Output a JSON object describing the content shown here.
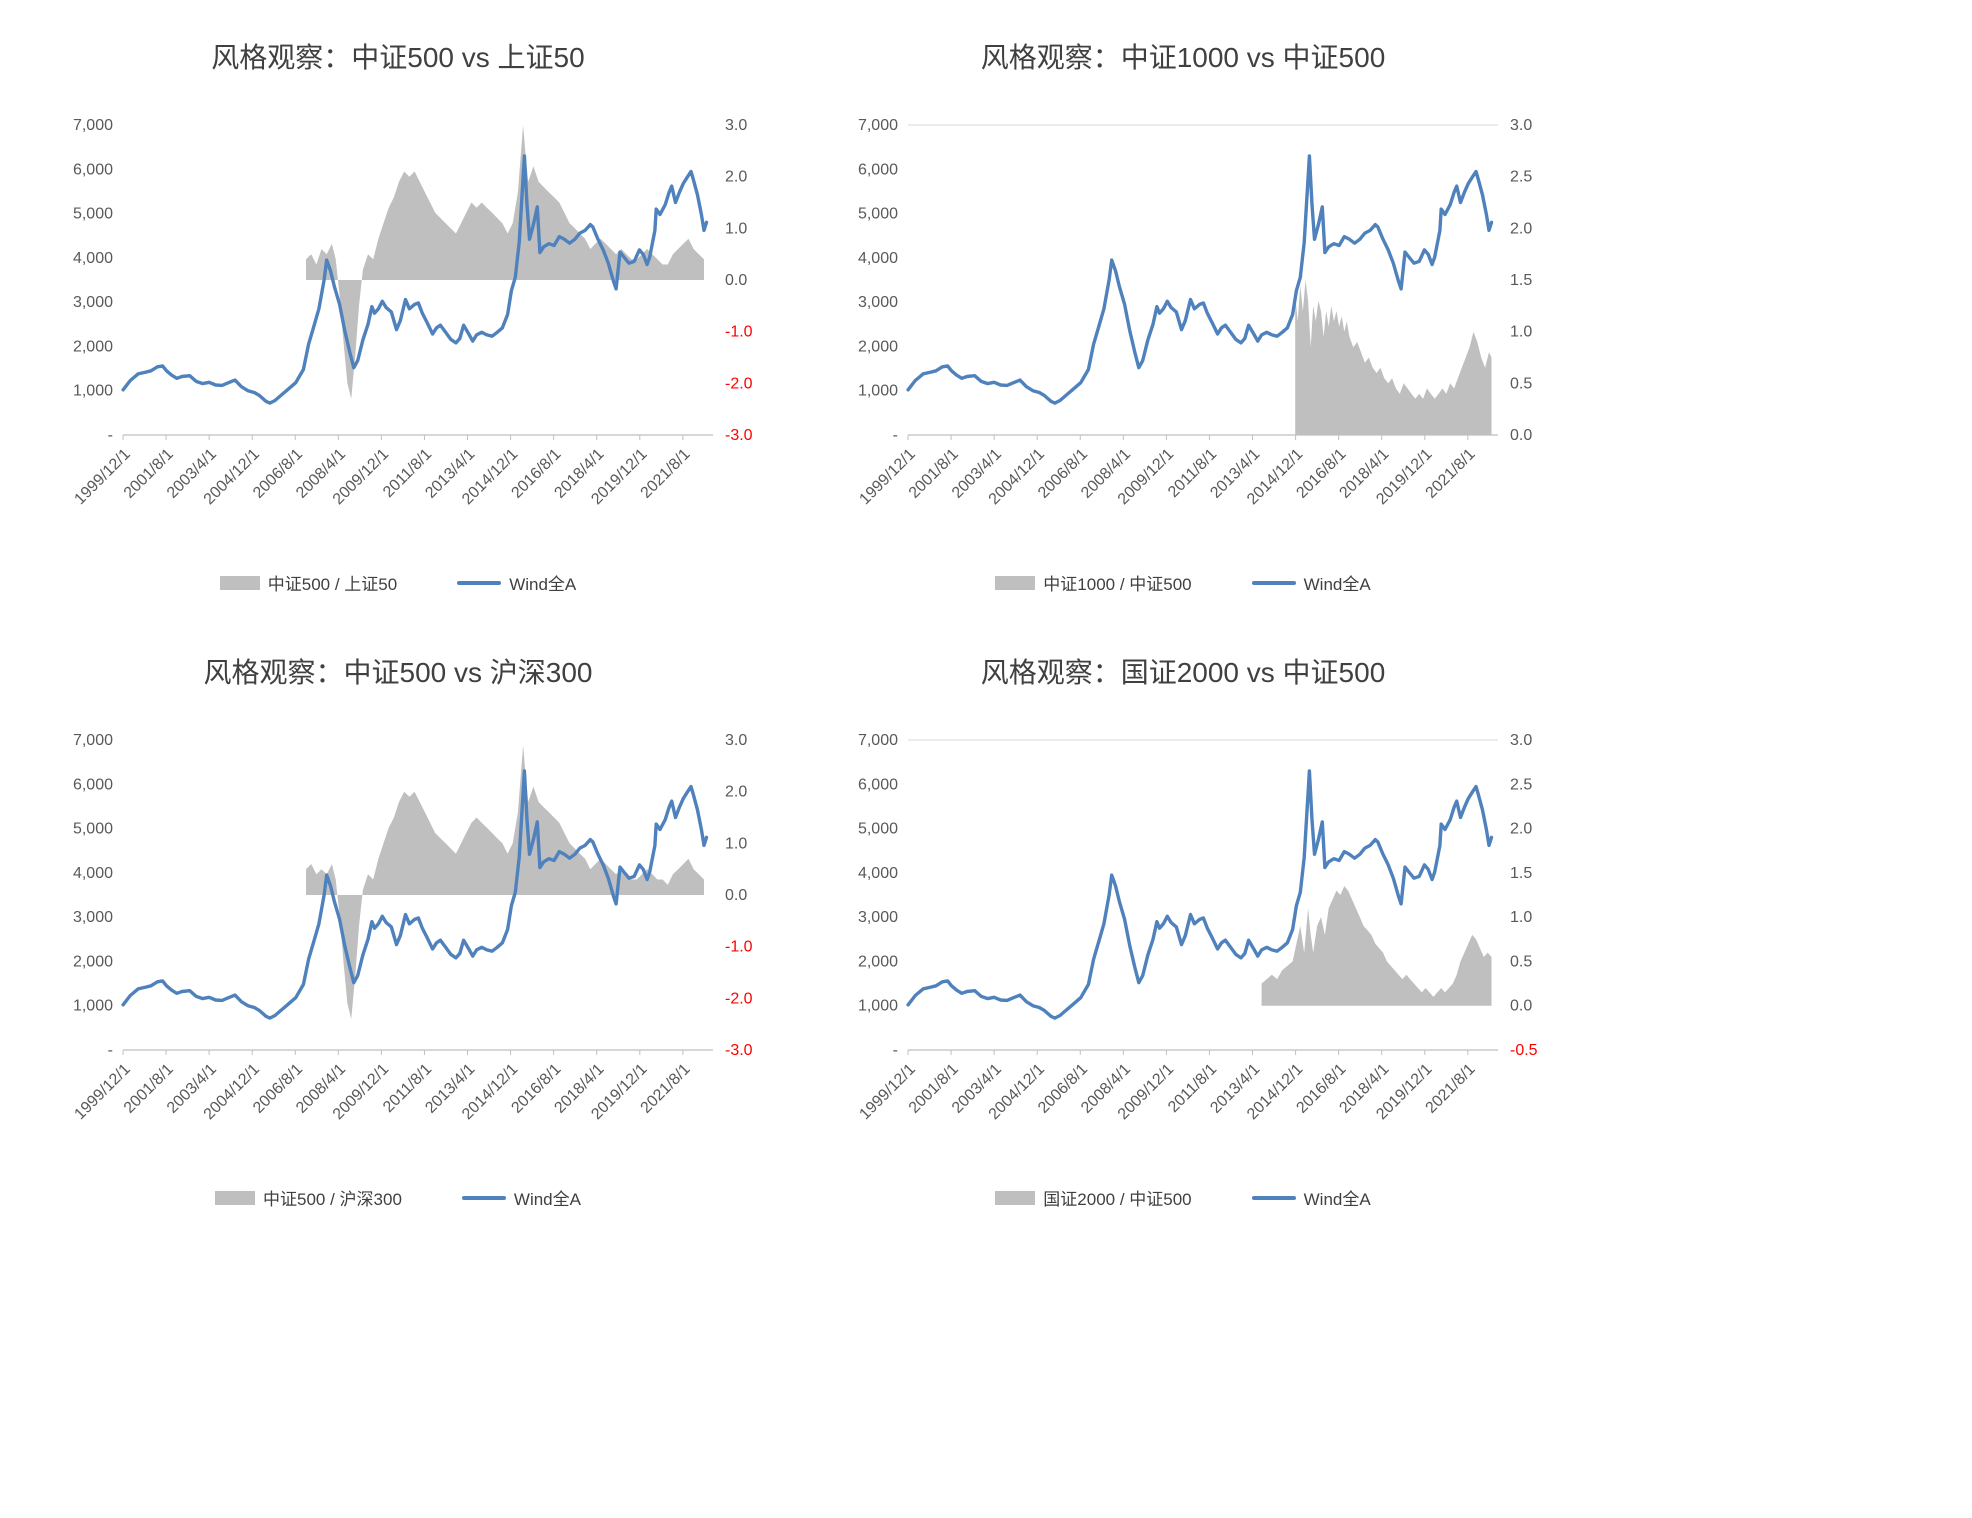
{
  "colors": {
    "line": "#4f81bd",
    "area": "#bfbfbf",
    "axis_text": "#595959",
    "negative_text": "#ff0000",
    "axis_line": "#bfbfbf",
    "gridline": "#d9d9d9"
  },
  "axes": {
    "left_labels": [
      "-",
      "1,000",
      "2,000",
      "3,000",
      "4,000",
      "5,000",
      "6,000",
      "7,000"
    ],
    "left_min": 0,
    "left_max": 7000,
    "x_tick_labels": [
      "1999/12/1",
      "2001/8/1",
      "2003/4/1",
      "2004/12/1",
      "2006/8/1",
      "2008/4/1",
      "2009/12/1",
      "2011/8/1",
      "2013/4/1",
      "2014/12/1",
      "2016/8/1",
      "2018/4/1",
      "2019/12/1",
      "2021/8/1"
    ],
    "x_tick_values": [
      1999.917,
      2001.583,
      2003.25,
      2004.917,
      2006.583,
      2008.25,
      2009.917,
      2011.583,
      2013.25,
      2014.917,
      2016.583,
      2018.25,
      2019.917,
      2021.583
    ],
    "x_min": 1999.917,
    "x_max": 2022.75
  },
  "chart_data": {
    "type": "line+area dual-axis, 2x2 grid of style-rotation charts",
    "wind_line": {
      "name": "Wind全A",
      "x": [
        1999.92,
        2000.2,
        2000.5,
        2000.8,
        2001.0,
        2001.25,
        2001.45,
        2001.6,
        2001.8,
        2002.0,
        2002.2,
        2002.5,
        2002.75,
        2003.0,
        2003.25,
        2003.5,
        2003.75,
        2004.0,
        2004.25,
        2004.5,
        2004.75,
        2005.0,
        2005.2,
        2005.45,
        2005.6,
        2005.8,
        2006.0,
        2006.3,
        2006.6,
        2006.9,
        2007.1,
        2007.3,
        2007.5,
        2007.7,
        2007.8,
        2007.95,
        2008.1,
        2008.3,
        2008.5,
        2008.7,
        2008.85,
        2009.0,
        2009.2,
        2009.4,
        2009.55,
        2009.65,
        2009.8,
        2009.95,
        2010.1,
        2010.3,
        2010.5,
        2010.65,
        2010.85,
        2011.0,
        2011.2,
        2011.35,
        2011.5,
        2011.7,
        2011.9,
        2012.05,
        2012.2,
        2012.4,
        2012.6,
        2012.8,
        2012.95,
        2013.1,
        2013.3,
        2013.45,
        2013.6,
        2013.8,
        2014.0,
        2014.2,
        2014.4,
        2014.6,
        2014.8,
        2014.95,
        2015.1,
        2015.25,
        2015.45,
        2015.55,
        2015.65,
        2015.8,
        2015.95,
        2016.05,
        2016.2,
        2016.4,
        2016.6,
        2016.8,
        2017.0,
        2017.2,
        2017.4,
        2017.6,
        2017.8,
        2018.0,
        2018.1,
        2018.3,
        2018.5,
        2018.7,
        2018.9,
        2019.0,
        2019.15,
        2019.3,
        2019.5,
        2019.7,
        2019.9,
        2020.05,
        2020.2,
        2020.3,
        2020.5,
        2020.55,
        2020.7,
        2020.9,
        2021.05,
        2021.15,
        2021.3,
        2021.45,
        2021.6,
        2021.75,
        2021.9,
        2022.0,
        2022.15,
        2022.3,
        2022.4,
        2022.5
      ],
      "y": [
        1020,
        1230,
        1380,
        1420,
        1450,
        1540,
        1560,
        1450,
        1350,
        1280,
        1320,
        1340,
        1210,
        1160,
        1190,
        1130,
        1120,
        1180,
        1240,
        1090,
        1000,
        960,
        890,
        760,
        720,
        780,
        880,
        1030,
        1180,
        1480,
        2050,
        2450,
        2850,
        3500,
        3950,
        3700,
        3350,
        2950,
        2350,
        1850,
        1520,
        1680,
        2150,
        2500,
        2900,
        2750,
        2850,
        3020,
        2880,
        2780,
        2380,
        2580,
        3060,
        2850,
        2950,
        2980,
        2750,
        2520,
        2280,
        2420,
        2480,
        2320,
        2160,
        2080,
        2180,
        2480,
        2280,
        2120,
        2260,
        2320,
        2260,
        2230,
        2320,
        2420,
        2720,
        3260,
        3560,
        4350,
        6300,
        5200,
        4420,
        4750,
        5150,
        4120,
        4250,
        4320,
        4280,
        4480,
        4420,
        4330,
        4420,
        4560,
        4620,
        4750,
        4700,
        4420,
        4180,
        3880,
        3470,
        3300,
        4130,
        4020,
        3880,
        3920,
        4180,
        4080,
        3850,
        4020,
        4620,
        5100,
        4980,
        5200,
        5480,
        5620,
        5250,
        5480,
        5680,
        5820,
        5950,
        5750,
        5420,
        4980,
        4620,
        4800
      ]
    },
    "charts": [
      {
        "title": "风格观察：中证500 vs 上证50",
        "legend": {
          "area": "中证500 / 上证50",
          "line": "Wind全A"
        },
        "right_axis": {
          "min": -3,
          "max": 3,
          "ticks": [
            3,
            2,
            1,
            0,
            -1,
            -2,
            -3
          ]
        },
        "top_gridline": false,
        "area": {
          "name": "中证500 / 上证50",
          "x": [
            2007.0,
            2007.2,
            2007.4,
            2007.6,
            2007.8,
            2008.0,
            2008.15,
            2008.3,
            2008.45,
            2008.6,
            2008.75,
            2008.9,
            2009.05,
            2009.2,
            2009.4,
            2009.6,
            2009.8,
            2010.0,
            2010.2,
            2010.4,
            2010.6,
            2010.8,
            2011.0,
            2011.2,
            2011.4,
            2011.6,
            2011.8,
            2012.0,
            2012.2,
            2012.4,
            2012.6,
            2012.8,
            2013.0,
            2013.2,
            2013.4,
            2013.6,
            2013.8,
            2014.0,
            2014.2,
            2014.4,
            2014.6,
            2014.8,
            2015.0,
            2015.2,
            2015.4,
            2015.5,
            2015.6,
            2015.8,
            2016.0,
            2016.2,
            2016.4,
            2016.6,
            2016.8,
            2017.0,
            2017.2,
            2017.4,
            2017.6,
            2017.8,
            2018.0,
            2018.2,
            2018.4,
            2018.6,
            2018.8,
            2019.0,
            2019.2,
            2019.4,
            2019.6,
            2019.8,
            2020.0,
            2020.2,
            2020.4,
            2020.6,
            2020.8,
            2021.0,
            2021.2,
            2021.4,
            2021.6,
            2021.8,
            2022.0,
            2022.2,
            2022.4
          ],
          "y": [
            0.4,
            0.5,
            0.3,
            0.6,
            0.5,
            0.7,
            0.4,
            -0.3,
            -1.2,
            -2.0,
            -2.3,
            -1.5,
            -0.5,
            0.2,
            0.5,
            0.4,
            0.8,
            1.1,
            1.4,
            1.6,
            1.9,
            2.1,
            2.0,
            2.1,
            1.9,
            1.7,
            1.5,
            1.3,
            1.2,
            1.1,
            1.0,
            0.9,
            1.1,
            1.3,
            1.5,
            1.4,
            1.5,
            1.4,
            1.3,
            1.2,
            1.1,
            0.9,
            1.1,
            1.7,
            3.0,
            2.4,
            1.9,
            2.2,
            1.9,
            1.8,
            1.7,
            1.6,
            1.5,
            1.3,
            1.1,
            1.0,
            0.9,
            0.8,
            0.6,
            0.7,
            0.8,
            0.7,
            0.6,
            0.5,
            0.6,
            0.5,
            0.4,
            0.4,
            0.5,
            0.6,
            0.5,
            0.4,
            0.3,
            0.3,
            0.5,
            0.6,
            0.7,
            0.8,
            0.6,
            0.5,
            0.4
          ]
        }
      },
      {
        "title": "风格观察：中证1000 vs 中证500",
        "legend": {
          "area": "中证1000 / 中证500",
          "line": "Wind全A"
        },
        "right_axis": {
          "min": 0,
          "max": 3,
          "ticks": [
            3,
            2.5,
            2,
            1.5,
            1,
            0.5,
            0
          ]
        },
        "top_gridline": true,
        "area": {
          "name": "中证1000 / 中证500",
          "x": [
            2014.9,
            2015.0,
            2015.1,
            2015.2,
            2015.3,
            2015.4,
            2015.5,
            2015.6,
            2015.7,
            2015.8,
            2015.9,
            2016.0,
            2016.1,
            2016.2,
            2016.3,
            2016.4,
            2016.5,
            2016.6,
            2016.7,
            2016.8,
            2016.9,
            2017.0,
            2017.15,
            2017.3,
            2017.45,
            2017.6,
            2017.75,
            2017.9,
            2018.05,
            2018.2,
            2018.35,
            2018.5,
            2018.65,
            2018.8,
            2018.95,
            2019.1,
            2019.25,
            2019.4,
            2019.55,
            2019.7,
            2019.85,
            2020.0,
            2020.15,
            2020.3,
            2020.45,
            2020.6,
            2020.75,
            2020.9,
            2021.05,
            2021.2,
            2021.35,
            2021.5,
            2021.65,
            2021.8,
            2021.95,
            2022.1,
            2022.25,
            2022.4,
            2022.5
          ],
          "y": [
            1.35,
            1.1,
            1.45,
            1.2,
            1.5,
            1.3,
            0.85,
            1.25,
            1.1,
            1.3,
            1.2,
            0.95,
            1.2,
            1.05,
            1.25,
            1.1,
            1.2,
            1.05,
            1.15,
            1.0,
            1.1,
            0.95,
            0.85,
            0.9,
            0.8,
            0.7,
            0.75,
            0.65,
            0.6,
            0.65,
            0.55,
            0.5,
            0.55,
            0.45,
            0.4,
            0.5,
            0.45,
            0.4,
            0.35,
            0.4,
            0.35,
            0.45,
            0.4,
            0.35,
            0.4,
            0.45,
            0.4,
            0.5,
            0.45,
            0.55,
            0.65,
            0.75,
            0.85,
            1.0,
            0.9,
            0.75,
            0.65,
            0.8,
            0.75
          ]
        }
      },
      {
        "title": "风格观察：中证500 vs 沪深300",
        "legend": {
          "area": "中证500 / 沪深300",
          "line": "Wind全A"
        },
        "right_axis": {
          "min": -3,
          "max": 3,
          "ticks": [
            3,
            2,
            1,
            0,
            -1,
            -2,
            -3
          ]
        },
        "top_gridline": false,
        "area": {
          "name": "中证500 / 沪深300",
          "x": [
            2007.0,
            2007.2,
            2007.4,
            2007.6,
            2007.8,
            2008.0,
            2008.15,
            2008.3,
            2008.45,
            2008.6,
            2008.75,
            2008.9,
            2009.05,
            2009.2,
            2009.4,
            2009.6,
            2009.8,
            2010.0,
            2010.2,
            2010.4,
            2010.6,
            2010.8,
            2011.0,
            2011.2,
            2011.4,
            2011.6,
            2011.8,
            2012.0,
            2012.2,
            2012.4,
            2012.6,
            2012.8,
            2013.0,
            2013.2,
            2013.4,
            2013.6,
            2013.8,
            2014.0,
            2014.2,
            2014.4,
            2014.6,
            2014.8,
            2015.0,
            2015.2,
            2015.4,
            2015.5,
            2015.6,
            2015.8,
            2016.0,
            2016.2,
            2016.4,
            2016.6,
            2016.8,
            2017.0,
            2017.2,
            2017.4,
            2017.6,
            2017.8,
            2018.0,
            2018.2,
            2018.4,
            2018.6,
            2018.8,
            2019.0,
            2019.2,
            2019.4,
            2019.6,
            2019.8,
            2020.0,
            2020.2,
            2020.4,
            2020.6,
            2020.8,
            2021.0,
            2021.2,
            2021.4,
            2021.6,
            2021.8,
            2022.0,
            2022.2,
            2022.4
          ],
          "y": [
            0.5,
            0.6,
            0.4,
            0.5,
            0.4,
            0.6,
            0.3,
            -0.4,
            -1.3,
            -2.1,
            -2.4,
            -1.6,
            -0.6,
            0.1,
            0.4,
            0.3,
            0.7,
            1.0,
            1.3,
            1.5,
            1.8,
            2.0,
            1.9,
            2.0,
            1.8,
            1.6,
            1.4,
            1.2,
            1.1,
            1.0,
            0.9,
            0.8,
            1.0,
            1.2,
            1.4,
            1.5,
            1.4,
            1.3,
            1.2,
            1.1,
            1.0,
            0.8,
            1.0,
            1.6,
            2.9,
            2.3,
            1.8,
            2.1,
            1.8,
            1.7,
            1.6,
            1.5,
            1.4,
            1.2,
            1.0,
            0.9,
            0.8,
            0.7,
            0.5,
            0.6,
            0.7,
            0.6,
            0.5,
            0.4,
            0.5,
            0.4,
            0.3,
            0.3,
            0.4,
            0.5,
            0.4,
            0.3,
            0.3,
            0.2,
            0.4,
            0.5,
            0.6,
            0.7,
            0.5,
            0.4,
            0.3
          ]
        }
      },
      {
        "title": "风格观察：国证2000 vs 中证500",
        "legend": {
          "area": "国证2000 / 中证500",
          "line": "Wind全A"
        },
        "right_axis": {
          "min": -0.5,
          "max": 3,
          "ticks": [
            3,
            2.5,
            2,
            1.5,
            1,
            0.5,
            0,
            -0.5
          ]
        },
        "top_gridline": true,
        "area": {
          "name": "国证2000 / 中证500",
          "x": [
            2013.6,
            2013.8,
            2014.0,
            2014.2,
            2014.4,
            2014.6,
            2014.8,
            2014.95,
            2015.1,
            2015.25,
            2015.4,
            2015.5,
            2015.6,
            2015.75,
            2015.9,
            2016.05,
            2016.2,
            2016.35,
            2016.5,
            2016.65,
            2016.8,
            2016.95,
            2017.1,
            2017.25,
            2017.4,
            2017.55,
            2017.7,
            2017.85,
            2018.0,
            2018.15,
            2018.3,
            2018.45,
            2018.6,
            2018.75,
            2018.9,
            2019.05,
            2019.2,
            2019.35,
            2019.5,
            2019.65,
            2019.8,
            2019.95,
            2020.1,
            2020.25,
            2020.4,
            2020.55,
            2020.7,
            2020.85,
            2021.0,
            2021.15,
            2021.3,
            2021.45,
            2021.6,
            2021.75,
            2021.9,
            2022.05,
            2022.2,
            2022.35,
            2022.5
          ],
          "y": [
            0.25,
            0.3,
            0.35,
            0.3,
            0.4,
            0.45,
            0.5,
            0.7,
            0.9,
            0.6,
            1.1,
            0.8,
            0.6,
            0.9,
            1.0,
            0.8,
            1.1,
            1.2,
            1.3,
            1.25,
            1.35,
            1.3,
            1.2,
            1.1,
            1.0,
            0.9,
            0.85,
            0.8,
            0.7,
            0.65,
            0.6,
            0.5,
            0.45,
            0.4,
            0.35,
            0.3,
            0.35,
            0.3,
            0.25,
            0.2,
            0.15,
            0.2,
            0.15,
            0.1,
            0.15,
            0.2,
            0.15,
            0.2,
            0.25,
            0.35,
            0.5,
            0.6,
            0.7,
            0.8,
            0.75,
            0.65,
            0.55,
            0.6,
            0.55
          ]
        }
      }
    ]
  }
}
